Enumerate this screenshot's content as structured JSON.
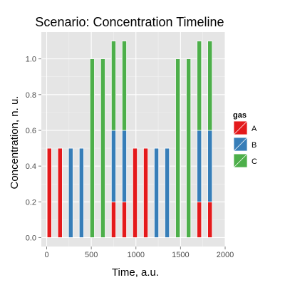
{
  "chart_data": {
    "type": "bar",
    "stacked": true,
    "title": "Scenario: Concentration Timeline",
    "xlabel": "Time, a.u.",
    "ylabel": "Concentration, n. u.",
    "xlim": [
      -60,
      2000
    ],
    "ylim": [
      -0.05,
      1.15
    ],
    "x_ticks": [
      0,
      500,
      1000,
      1500,
      2000
    ],
    "y_ticks": [
      0.0,
      0.2,
      0.4,
      0.6,
      0.8,
      1.0
    ],
    "y_tick_labels": [
      "0.0",
      "0.2",
      "0.4",
      "0.6",
      "0.8",
      "1.0"
    ],
    "bar_width": 50,
    "grid": true,
    "legend_position": "right",
    "legend_title": "gas",
    "x": [
      30,
      150,
      270,
      390,
      510,
      630,
      750,
      870,
      990,
      1110,
      1230,
      1350,
      1470,
      1590,
      1710,
      1830
    ],
    "series": [
      {
        "name": "A",
        "color": "#e41a1c",
        "values": [
          0.5,
          0.5,
          0,
          0,
          0,
          0,
          0.2,
          0.2,
          0.5,
          0.5,
          0,
          0,
          0,
          0,
          0.2,
          0.2
        ]
      },
      {
        "name": "B",
        "color": "#377eb8",
        "values": [
          0,
          0,
          0.5,
          0.5,
          0,
          0,
          0.4,
          0.4,
          0,
          0,
          0.5,
          0.5,
          0,
          0,
          0.4,
          0.4
        ]
      },
      {
        "name": "C",
        "color": "#4daf4a",
        "values": [
          0,
          0,
          0,
          0,
          1.0,
          1.0,
          0.5,
          0.5,
          0,
          0,
          0,
          0,
          1.0,
          1.0,
          0.5,
          0.5
        ]
      }
    ]
  },
  "colors": {
    "panel_background": "#e5e5e5",
    "grid_major": "#ffffff",
    "grid_minor": "#f2f2f2",
    "bar_outline": "#ffffff"
  }
}
